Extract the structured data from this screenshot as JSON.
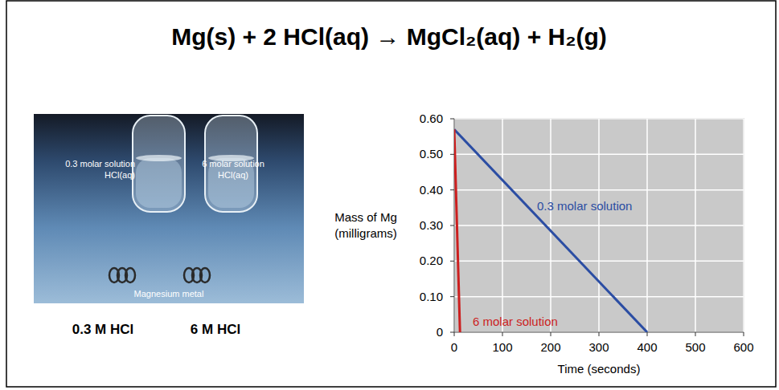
{
  "header": {
    "title": "Mg(s)  +  2 HCl(aq) → MgCl₂(aq)  +  H₂(g)"
  },
  "photo": {
    "labels": [
      [
        "0.3 molar solution",
        "HCl(aq)"
      ],
      [
        "6 molar solution",
        "HCl(aq)"
      ]
    ],
    "metal_label": "Magnesium metal"
  },
  "captions": [
    "0.3 M HCl",
    "6 M HCl"
  ],
  "chart_data": {
    "type": "line",
    "x_label": "Time (seconds)",
    "y_label": "Mass of Mg (milligrams)",
    "xlim": [
      0,
      600
    ],
    "xticks": [
      0,
      100,
      200,
      300,
      400,
      500,
      600
    ],
    "ylim": [
      0,
      0.6
    ],
    "yticks": [
      0,
      {
        "value": 0.1,
        "label": "0.10"
      },
      {
        "value": 0.2,
        "label": "0.20"
      },
      {
        "value": 0.3,
        "label": "0.30"
      },
      {
        "value": 0.4,
        "label": "0.40"
      },
      {
        "value": 0.5,
        "label": "0.50"
      },
      {
        "value": 0.6,
        "label": "0.60"
      }
    ],
    "grid": true,
    "series": [
      {
        "name": "0.3 molar solution",
        "color": "#2b4da3",
        "x": [
          0,
          400
        ],
        "values": [
          0.57,
          0
        ]
      },
      {
        "name": "6 molar solution",
        "color": "#cc1f1f",
        "x": [
          0,
          12
        ],
        "values": [
          0.57,
          0
        ]
      }
    ]
  }
}
